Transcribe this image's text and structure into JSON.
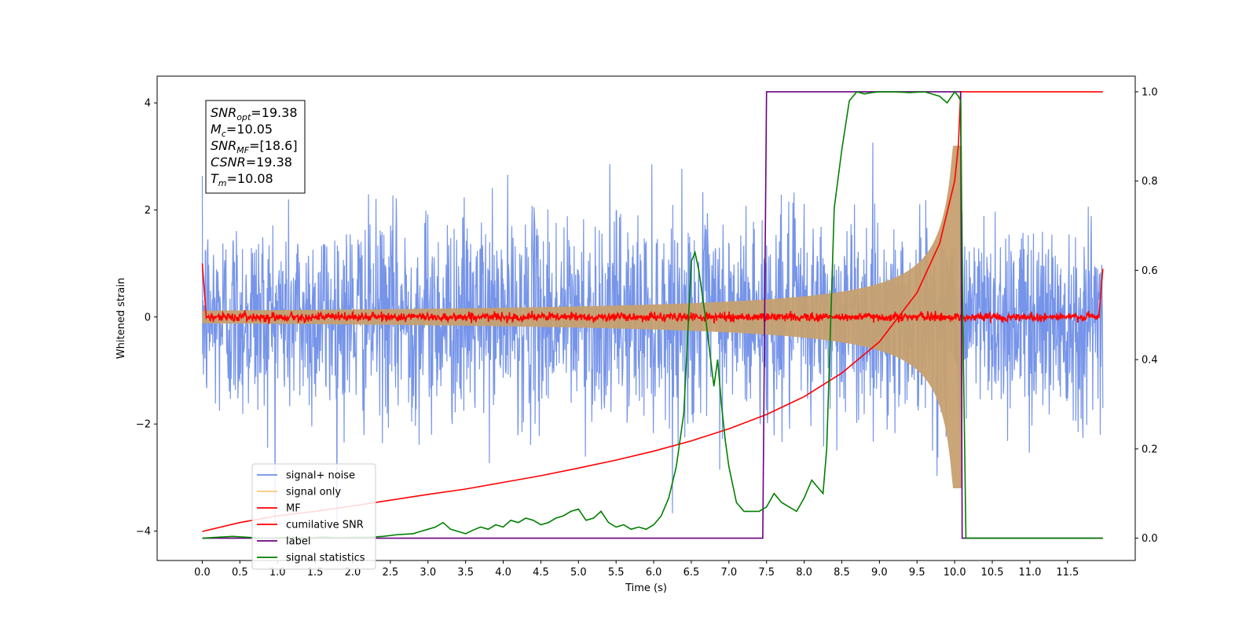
{
  "chart_data": {
    "type": "line",
    "xlabel": "Time (s)",
    "ylabel": "Whitened strain",
    "xlim": [
      -0.6,
      12.4
    ],
    "ylim": [
      -4.55,
      4.5
    ],
    "y2lim": [
      -0.05,
      1.035
    ],
    "x_ticks": [
      "0.0",
      "0.5",
      "1.0",
      "1.5",
      "2.0",
      "2.5",
      "3.0",
      "3.5",
      "4.0",
      "4.5",
      "5.0",
      "5.5",
      "6.0",
      "6.5",
      "7.0",
      "7.5",
      "8.0",
      "8.5",
      "9.0",
      "9.5",
      "10.0",
      "10.5",
      "11.0",
      "11.5"
    ],
    "y_ticks": [
      "−4",
      "−2",
      "0",
      "2",
      "4"
    ],
    "y2_ticks": [
      "0.0",
      "0.2",
      "0.4",
      "0.6",
      "0.8",
      "1.0"
    ],
    "legend_location": "lower-left",
    "annotation": {
      "lines": [
        {
          "base": "SNR",
          "sub": "opt",
          "value": "=19.38"
        },
        {
          "base": "M",
          "sub": "c",
          "value": "=10.05"
        },
        {
          "base": "SNR",
          "sub": "MF",
          "value": "=[18.6]"
        },
        {
          "base": "CSNR",
          "sub": "",
          "value": "=19.38"
        },
        {
          "base": "T",
          "sub": "m",
          "value": "=10.08"
        }
      ]
    },
    "series": [
      {
        "name": "signal+ noise",
        "color": "#6f8ee8",
        "axis": "left",
        "kind": "noise",
        "noise_std": 0.95,
        "x_start": 0.0,
        "x_end": 11.97
      },
      {
        "name": "signal only",
        "color": "#f5c87a",
        "axis": "left",
        "kind": "chirp",
        "merger_time": 10.08,
        "peak_amplitude": 3.2,
        "x_start": 0.0,
        "x_end": 11.97
      },
      {
        "name": "MF",
        "color": "#ff0000",
        "axis": "left",
        "kind": "mf",
        "x_start": 0.0,
        "x_end": 11.97,
        "start_value": 1.0,
        "end_value": 0.9
      },
      {
        "name": "cumilative SNR",
        "color": "#ff0000",
        "axis": "right",
        "x": [
          0.0,
          0.5,
          1.0,
          1.5,
          2.0,
          2.5,
          3.0,
          3.5,
          4.0,
          4.5,
          5.0,
          5.5,
          6.0,
          6.5,
          7.0,
          7.5,
          8.0,
          8.5,
          9.0,
          9.5,
          9.8,
          10.0,
          10.05,
          10.08,
          11.97
        ],
        "y": [
          0.015,
          0.035,
          0.05,
          0.06,
          0.072,
          0.085,
          0.098,
          0.11,
          0.125,
          0.14,
          0.157,
          0.175,
          0.195,
          0.218,
          0.245,
          0.277,
          0.317,
          0.37,
          0.44,
          0.55,
          0.66,
          0.8,
          0.88,
          1.0,
          1.0
        ]
      },
      {
        "name": "label",
        "color": "#6a0080",
        "axis": "right",
        "x": [
          0.0,
          7.45,
          7.5,
          10.08,
          10.1,
          11.97
        ],
        "y": [
          0.0,
          0.0,
          1.0,
          1.0,
          0.0,
          0.0
        ]
      },
      {
        "name": "signal statistics",
        "color": "#008000",
        "axis": "right",
        "x": [
          0.0,
          0.2,
          0.4,
          0.6,
          0.8,
          1.0,
          1.2,
          1.4,
          1.6,
          1.8,
          2.0,
          2.2,
          2.4,
          2.6,
          2.8,
          2.9,
          3.0,
          3.1,
          3.2,
          3.3,
          3.4,
          3.5,
          3.6,
          3.7,
          3.8,
          3.9,
          4.0,
          4.1,
          4.2,
          4.3,
          4.4,
          4.5,
          4.6,
          4.7,
          4.8,
          4.9,
          5.0,
          5.1,
          5.2,
          5.3,
          5.4,
          5.5,
          5.6,
          5.7,
          5.8,
          5.9,
          6.0,
          6.1,
          6.2,
          6.3,
          6.4,
          6.5,
          6.55,
          6.6,
          6.7,
          6.8,
          6.85,
          6.9,
          6.95,
          7.0,
          7.1,
          7.2,
          7.3,
          7.4,
          7.5,
          7.6,
          7.7,
          7.8,
          7.9,
          8.0,
          8.1,
          8.2,
          8.25,
          8.3,
          8.35,
          8.4,
          8.5,
          8.6,
          8.7,
          8.8,
          8.9,
          9.0,
          9.2,
          9.4,
          9.6,
          9.8,
          9.9,
          10.0,
          10.05,
          10.08,
          10.1,
          10.15,
          10.2,
          11.97
        ],
        "y": [
          0.0,
          0.002,
          0.004,
          0.002,
          0.0,
          0.001,
          0.002,
          0.0,
          0.003,
          0.001,
          0.002,
          0.002,
          0.004,
          0.008,
          0.01,
          0.015,
          0.02,
          0.025,
          0.035,
          0.02,
          0.015,
          0.01,
          0.018,
          0.025,
          0.02,
          0.03,
          0.025,
          0.04,
          0.035,
          0.045,
          0.04,
          0.03,
          0.035,
          0.045,
          0.05,
          0.06,
          0.065,
          0.04,
          0.045,
          0.06,
          0.035,
          0.025,
          0.03,
          0.02,
          0.025,
          0.02,
          0.03,
          0.05,
          0.09,
          0.16,
          0.28,
          0.62,
          0.64,
          0.6,
          0.48,
          0.34,
          0.4,
          0.3,
          0.22,
          0.16,
          0.08,
          0.06,
          0.06,
          0.06,
          0.07,
          0.1,
          0.08,
          0.07,
          0.06,
          0.09,
          0.13,
          0.11,
          0.1,
          0.2,
          0.47,
          0.74,
          0.87,
          0.98,
          1.0,
          0.995,
          0.998,
          1.0,
          1.0,
          0.998,
          1.0,
          0.99,
          0.975,
          1.0,
          0.99,
          0.98,
          0.6,
          0.0,
          0.0,
          0.0
        ]
      }
    ]
  }
}
